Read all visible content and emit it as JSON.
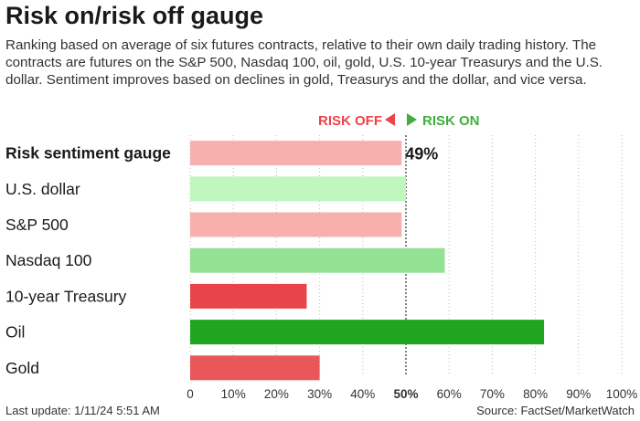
{
  "header": {
    "title": "Risk on/risk off gauge",
    "subtitle": "Ranking based on average of six futures contracts, relative to their own daily trading history. The contracts are futures on the S&P 500, Nasdaq 100, oil, gold, U.S. 10-year Treasurys and the U.S. dollar. Sentiment improves based on declines in gold, Treasurys and the dollar, and vice versa."
  },
  "legend": {
    "risk_off": "RISK OFF",
    "risk_on": "RISK ON"
  },
  "chart_data": {
    "type": "bar",
    "orientation": "horizontal",
    "categories": [
      "Risk sentiment gauge",
      "U.S. dollar",
      "S&P 500",
      "Nasdaq 100",
      "10-year Treasury",
      "Oil",
      "Gold"
    ],
    "values": [
      49,
      50,
      49,
      59,
      27,
      82,
      30
    ],
    "data_labels": [
      "49%",
      "",
      "",
      "",
      "",
      "",
      ""
    ],
    "bar_colors": [
      "#f7b0ae",
      "#bff7bf",
      "#f7b0ae",
      "#93e193",
      "#e8454a",
      "#1fa51f",
      "#e9575b"
    ],
    "xlim": [
      0,
      100
    ],
    "x_ticks": [
      0,
      10,
      20,
      30,
      40,
      50,
      60,
      70,
      80,
      90,
      100
    ],
    "x_tick_labels": [
      "0",
      "10%",
      "20%",
      "30%",
      "40%",
      "50%",
      "60%",
      "70%",
      "80%",
      "90%",
      "100%"
    ],
    "grid": true,
    "reference_line": 50
  },
  "footer": {
    "last_update": "Last update: 1/11/24 5:51 AM",
    "source": "Source: FactSet/MarketWatch"
  }
}
